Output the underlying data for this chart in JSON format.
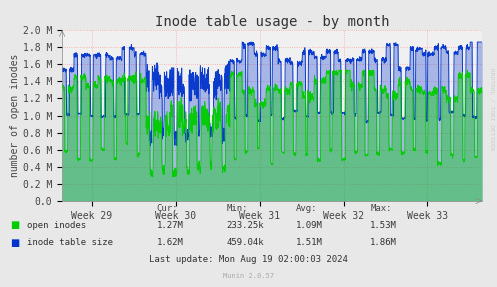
{
  "title": "Inode table usage - by month",
  "ylabel": "number of open inodes",
  "xlabel_ticks": [
    "Week 29",
    "Week 30",
    "Week 31",
    "Week 32",
    "Week 33"
  ],
  "ylim": [
    0,
    2000000
  ],
  "yticks": [
    0,
    200000,
    400000,
    600000,
    800000,
    1000000,
    1200000,
    1400000,
    1600000,
    1800000,
    2000000
  ],
  "ytick_labels": [
    "0.0",
    "0.2 M",
    "0.4 M",
    "0.6 M",
    "0.8 M",
    "1.0 M",
    "1.2 M",
    "1.4 M",
    "1.6 M",
    "1.8 M",
    "2.0 M"
  ],
  "bg_color": "#e8e8e8",
  "plot_bg_color": "#f0f0f0",
  "grid_color": "#ff9999",
  "green_color": "#00cc00",
  "blue_color": "#0033cc",
  "green_fill": "#00cc0066",
  "blue_fill": "#0033cc44",
  "title_fontsize": 10,
  "axis_fontsize": 7,
  "legend_items": [
    "open inodes",
    "inode table size"
  ],
  "legend_colors": [
    "#00cc00",
    "#0033cc"
  ],
  "cur_values": [
    "1.27M",
    "1.62M"
  ],
  "min_values": [
    "233.25k",
    "459.04k"
  ],
  "avg_values": [
    "1.09M",
    "1.51M"
  ],
  "max_values": [
    "1.53M",
    "1.86M"
  ],
  "last_update": "Last update: Mon Aug 19 02:00:03 2024",
  "munin_version": "Munin 2.0.57",
  "rrdtool_label": "RRDTOOL / TOBI OETIKER",
  "n_weeks": 5,
  "days_per_week": 7,
  "samples_per_day": 48,
  "green_mean": 1090000,
  "green_max": 1530000,
  "green_min": 233250,
  "blue_mean": 1510000,
  "blue_max": 1860000,
  "blue_min": 459040
}
